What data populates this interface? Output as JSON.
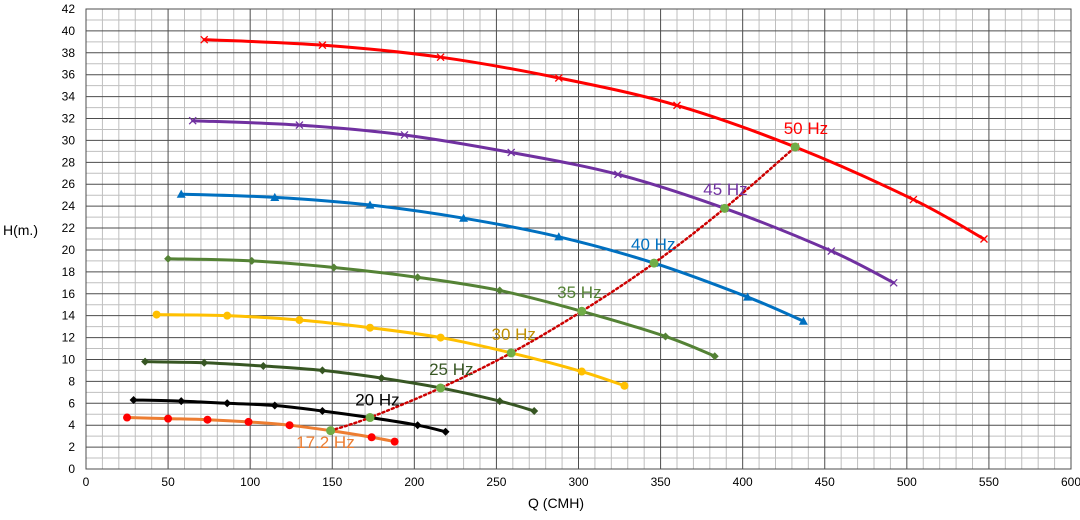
{
  "chart_data": {
    "type": "line",
    "title": "",
    "xlabel": "Q (CMH)",
    "ylabel": "H(m.)",
    "xlim": [
      0,
      600
    ],
    "ylim": [
      0,
      42
    ],
    "x_ticks": [
      0,
      50,
      100,
      150,
      200,
      250,
      300,
      350,
      400,
      450,
      500,
      550,
      600
    ],
    "y_ticks": [
      0,
      2,
      4,
      6,
      8,
      10,
      12,
      14,
      16,
      18,
      20,
      22,
      24,
      26,
      28,
      30,
      32,
      34,
      36,
      38,
      40,
      42
    ],
    "grid": true,
    "legend": "none",
    "series": [
      {
        "name": "50 Hz",
        "color": "#ff0000",
        "marker": "x",
        "x": [
          72,
          144,
          216,
          288,
          360,
          432,
          504,
          547
        ],
        "y": [
          39.2,
          38.7,
          37.6,
          35.7,
          33.2,
          29.4,
          24.6,
          21.0
        ]
      },
      {
        "name": "45 Hz",
        "color": "#7030a0",
        "marker": "x",
        "x": [
          65,
          130,
          194,
          259,
          324,
          389,
          454,
          492
        ],
        "y": [
          31.8,
          31.4,
          30.5,
          28.9,
          26.9,
          23.8,
          19.9,
          17.0
        ]
      },
      {
        "name": "40 Hz",
        "color": "#0070c0",
        "marker": "triangle",
        "x": [
          58,
          115,
          173,
          230,
          288,
          346,
          403,
          437
        ],
        "y": [
          25.1,
          24.8,
          24.1,
          22.9,
          21.2,
          18.8,
          15.7,
          13.5
        ]
      },
      {
        "name": "35 Hz",
        "color": "#548235",
        "marker": "diamond",
        "x": [
          50,
          101,
          151,
          202,
          252,
          302,
          353,
          383
        ],
        "y": [
          19.2,
          19.0,
          18.4,
          17.5,
          16.3,
          14.4,
          12.1,
          10.3
        ]
      },
      {
        "name": "30 Hz",
        "color": "#ffc000",
        "marker": "circle",
        "x": [
          43,
          86,
          130,
          173,
          216,
          259,
          302,
          328
        ],
        "y": [
          14.1,
          14.0,
          13.6,
          12.9,
          12.0,
          10.6,
          8.9,
          7.6
        ]
      },
      {
        "name": "25 Hz",
        "color": "#375623",
        "marker": "diamond",
        "x": [
          36,
          72,
          108,
          144,
          180,
          216,
          252,
          273
        ],
        "y": [
          9.8,
          9.7,
          9.4,
          9.0,
          8.3,
          7.4,
          6.2,
          5.3
        ]
      },
      {
        "name": "20 Hz",
        "color": "#000000",
        "marker": "diamond",
        "x": [
          29,
          58,
          86,
          115,
          144,
          173,
          202,
          219
        ],
        "y": [
          6.3,
          6.2,
          6.0,
          5.8,
          5.3,
          4.7,
          4.0,
          3.4
        ]
      },
      {
        "name": "17.2 Hz",
        "color": "#ed7d31",
        "marker_color": "#ff0000",
        "marker": "circle",
        "x": [
          25,
          50,
          74,
          99,
          124,
          149,
          174,
          188
        ],
        "y": [
          4.7,
          4.6,
          4.5,
          4.3,
          4.0,
          3.5,
          2.9,
          2.5
        ]
      }
    ],
    "efficiency_line": {
      "color": "#cc0000",
      "style": "dotted",
      "marker_color": "#70ad47",
      "x": [
        149,
        173,
        216,
        259,
        302,
        346,
        389,
        432
      ],
      "y": [
        3.5,
        4.7,
        7.4,
        10.6,
        14.4,
        18.8,
        23.8,
        29.4
      ]
    },
    "annotations": [
      {
        "text": "50 Hz",
        "x": 425,
        "y": 30.6,
        "color": "#ff0000"
      },
      {
        "text": "45 Hz",
        "x": 376,
        "y": 25.0,
        "color": "#7030a0"
      },
      {
        "text": "40 Hz",
        "x": 332,
        "y": 20.0,
        "color": "#0070c0"
      },
      {
        "text": "35 Hz",
        "x": 287,
        "y": 15.6,
        "color": "#548235"
      },
      {
        "text": "30 Hz",
        "x": 247,
        "y": 11.8,
        "color": "#bf8f00"
      },
      {
        "text": "25 Hz",
        "x": 209,
        "y": 8.6,
        "color": "#375623"
      },
      {
        "text": "20 Hz",
        "x": 164,
        "y": 5.8,
        "color": "#000000"
      },
      {
        "text": "17.2 Hz",
        "x": 128,
        "y": 1.9,
        "color": "#ed7d31"
      }
    ]
  }
}
